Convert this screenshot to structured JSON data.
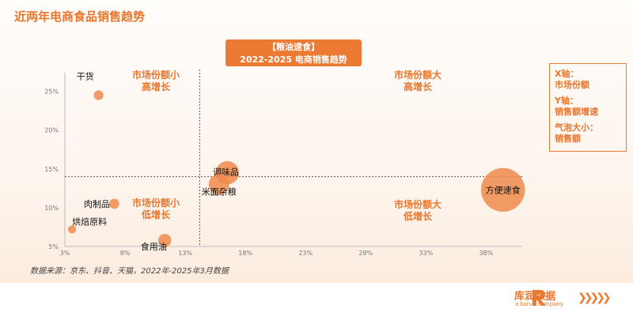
{
  "page_title": "近两年电商食品销售趋势",
  "title_box": {
    "line1": "【粮油速食】",
    "line2": "2022-2025 电商销售趋势"
  },
  "legend": {
    "x": "X轴：",
    "x_val": "市场份额",
    "y": "Y轴：",
    "y_val": "销售额增速",
    "size": "气泡大小：",
    "size_val": "销售额"
  },
  "quadrants": {
    "top_left": [
      "市场份额小",
      "高增长"
    ],
    "top_right": [
      "市场份额大",
      "高增长"
    ],
    "bottom_left": [
      "市场份额小",
      "低增长"
    ],
    "bottom_right": [
      "市场份额大",
      "低增长"
    ]
  },
  "source": "数据来源：京东、抖音、天猫，2022年-2025年3月数据",
  "logo": {
    "name": "库润数据",
    "sub": "a kurun company"
  },
  "colors": {
    "accent": "#ec7a33",
    "bubble": "#ef8a4c"
  },
  "chart_data": {
    "type": "scatter",
    "title": "【粮油速食】2022-2025 电商销售趋势",
    "xlabel": "市场份额",
    "ylabel": "销售额增速",
    "xlim": [
      3,
      41
    ],
    "ylim": [
      5,
      27
    ],
    "x_ticks": [
      "3%",
      "8%",
      "13%",
      "18%",
      "23%",
      "28%",
      "33%",
      "38%"
    ],
    "y_ticks": [
      "5%",
      "10%",
      "15%",
      "20%",
      "25%"
    ],
    "x_divider": 14.2,
    "y_divider": 14.0,
    "points": [
      {
        "name": "干货",
        "x": 5.8,
        "y": 24.5,
        "size": 1.2
      },
      {
        "name": "调味品",
        "x": 16.5,
        "y": 14.5,
        "size": 4.5
      },
      {
        "name": "米面杂粮",
        "x": 15.8,
        "y": 13.0,
        "size": 3.8
      },
      {
        "name": "方便速食",
        "x": 39.4,
        "y": 12.3,
        "size": 9.5
      },
      {
        "name": "肉制品",
        "x": 7.1,
        "y": 10.5,
        "size": 1.3
      },
      {
        "name": "食用油",
        "x": 11.3,
        "y": 5.8,
        "size": 2.0
      },
      {
        "name": "烘焙原料",
        "x": 3.6,
        "y": 7.2,
        "size": 0.8
      }
    ]
  }
}
